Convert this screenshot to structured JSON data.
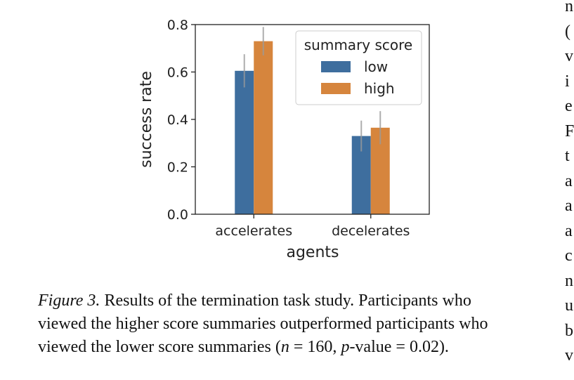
{
  "chart_data": {
    "type": "bar",
    "categories": [
      "accelerates",
      "decelerates"
    ],
    "series": [
      {
        "name": "low",
        "values": [
          0.605,
          0.33
        ],
        "err": [
          0.07,
          0.065
        ],
        "color": "#3e6e9e"
      },
      {
        "name": "high",
        "values": [
          0.73,
          0.365
        ],
        "err": [
          0.06,
          0.07
        ],
        "color": "#d6853d"
      }
    ],
    "xlabel": "agents",
    "ylabel": "success rate",
    "ylim": [
      0,
      0.8
    ],
    "yticks": [
      "0.0",
      "0.2",
      "0.4",
      "0.6",
      "0.8"
    ],
    "legend": {
      "title": "summary score",
      "position": "top-right"
    },
    "grid": false
  },
  "caption": {
    "label": "Figure 3.",
    "line1_rest": " Results of the termination task study. Participants who",
    "line2": "viewed the higher score summaries outperformed participants who",
    "line3_a": "viewed the lower score summaries (",
    "n_var": "n",
    "n_eq": " = 160, ",
    "p_var": "p",
    "line3_b": "-value = 0.02)."
  },
  "side_text": [
    "n",
    "(",
    "v",
    "i",
    "e",
    "F",
    "t",
    "a",
    "a",
    "a",
    "c",
    "n",
    "u",
    "b",
    "v"
  ]
}
